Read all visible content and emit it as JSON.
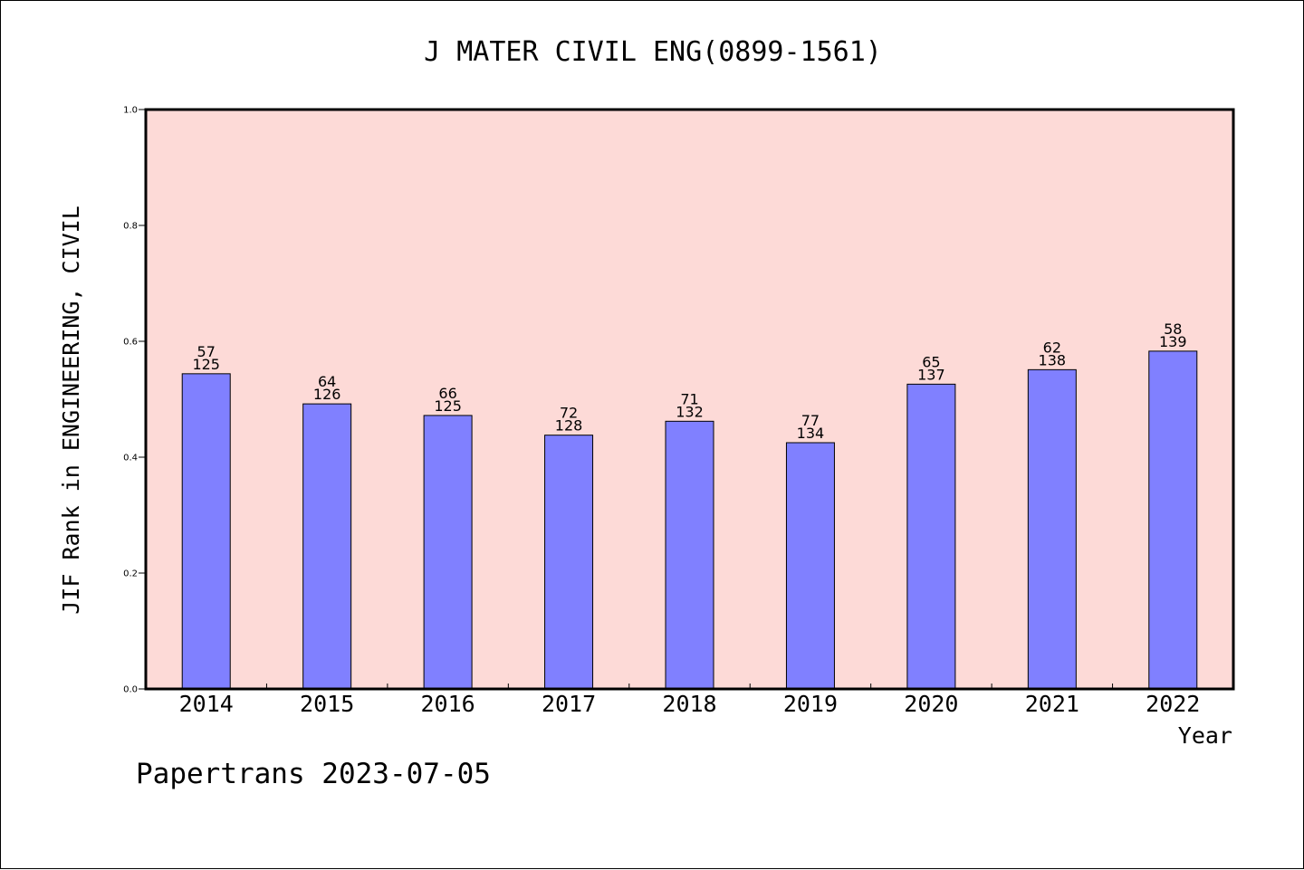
{
  "colors": {
    "plot_background": "#fddad7",
    "bar_fill": "#8080ff",
    "bar_stroke": "#000000",
    "axis": "#000000",
    "text": "#000000",
    "page_background": "#ffffff"
  },
  "chart_data": {
    "type": "bar",
    "title": "J MATER CIVIL ENG(0899-1561)",
    "xlabel": "Year",
    "ylabel": "JIF Rank in ENGINEERING, CIVIL",
    "footer": "Papertrans 2023-07-05",
    "ylim": [
      0,
      1
    ],
    "yticks": [
      "0.0",
      "0.2",
      "0.4",
      "0.6",
      "0.8",
      "1.0"
    ],
    "grid": false,
    "categories": [
      "2014",
      "2015",
      "2016",
      "2017",
      "2018",
      "2019",
      "2020",
      "2021",
      "2022"
    ],
    "ranks": [
      "57",
      "64",
      "66",
      "72",
      "71",
      "77",
      "65",
      "62",
      "58"
    ],
    "totals": [
      "125",
      "126",
      "125",
      "128",
      "132",
      "134",
      "137",
      "138",
      "139"
    ],
    "values": [
      0.544,
      0.492,
      0.472,
      0.438,
      0.462,
      0.425,
      0.526,
      0.551,
      0.583
    ]
  }
}
